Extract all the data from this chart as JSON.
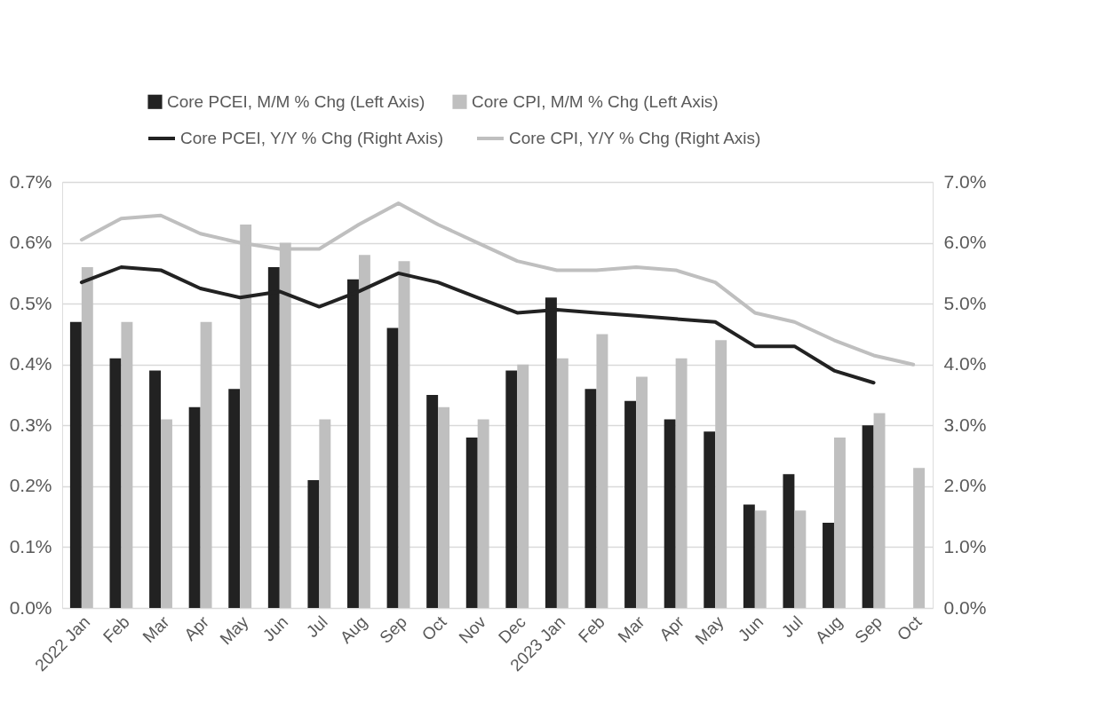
{
  "chart_data": {
    "type": "bar",
    "categories": [
      "2022 Jan",
      "Feb",
      "Mar",
      "Apr",
      "May",
      "Jun",
      "Jul",
      "Aug",
      "Sep",
      "Oct",
      "Nov",
      "Dec",
      "2023 Jan",
      "Feb",
      "Mar",
      "Apr",
      "May",
      "Jun",
      "Jul",
      "Aug",
      "Sep",
      "Oct"
    ],
    "series": [
      {
        "name": "Core PCEI, M/M % Chg (Left Axis)",
        "color": "#222222",
        "values": [
          0.47,
          0.41,
          0.39,
          0.33,
          0.36,
          0.56,
          0.21,
          0.54,
          0.46,
          0.35,
          0.28,
          0.39,
          0.51,
          0.36,
          0.34,
          0.31,
          0.29,
          0.17,
          0.22,
          0.14,
          0.3,
          null
        ]
      },
      {
        "name": "Core CPI, M/M % Chg (Left Axis)",
        "color": "#bfbfbf",
        "values": [
          0.56,
          0.47,
          0.31,
          0.47,
          0.63,
          0.6,
          0.31,
          0.58,
          0.57,
          0.33,
          0.31,
          0.4,
          0.41,
          0.45,
          0.38,
          0.41,
          0.44,
          0.16,
          0.16,
          0.28,
          0.32,
          0.23
        ]
      },
      {
        "name": "Core PCEI, Y/Y % Chg (Right Axis)",
        "type": "line",
        "axis": "y2",
        "color": "#222222",
        "values": [
          5.35,
          5.6,
          5.55,
          5.25,
          5.1,
          5.2,
          4.95,
          5.2,
          5.5,
          5.35,
          5.1,
          4.85,
          4.9,
          4.85,
          4.8,
          4.75,
          4.7,
          4.3,
          4.3,
          3.9,
          3.7,
          null
        ]
      },
      {
        "name": "Core CPI, Y/Y % Chg (Right Axis)",
        "type": "line",
        "axis": "y2",
        "color": "#bfbfbf",
        "values": [
          6.05,
          6.4,
          6.45,
          6.15,
          6.0,
          5.9,
          5.9,
          6.3,
          6.65,
          6.3,
          6.0,
          5.7,
          5.55,
          5.55,
          5.6,
          5.55,
          5.35,
          4.85,
          4.7,
          4.4,
          4.15,
          4.0
        ]
      }
    ],
    "ylim": [
      0,
      0.7
    ],
    "yticks": [
      {
        "value": 0,
        "label": "0.0%"
      },
      {
        "value": 0.1,
        "label": "0.1%"
      },
      {
        "value": 0.2,
        "label": "0.2%"
      },
      {
        "value": 0.3,
        "label": "0.3%"
      },
      {
        "value": 0.4,
        "label": "0.4%"
      },
      {
        "value": 0.5,
        "label": "0.5%"
      },
      {
        "value": 0.6,
        "label": "0.6%"
      },
      {
        "value": 0.7,
        "label": "0.7%"
      }
    ],
    "y2lim": [
      0,
      7
    ],
    "y2ticks": [
      {
        "value": 0,
        "label": "0.0%"
      },
      {
        "value": 1,
        "label": "1.0%"
      },
      {
        "value": 2,
        "label": "2.0%"
      },
      {
        "value": 3,
        "label": "3.0%"
      },
      {
        "value": 4,
        "label": "4.0%"
      },
      {
        "value": 5,
        "label": "5.0%"
      },
      {
        "value": 6,
        "label": "6.0%"
      },
      {
        "value": 7,
        "label": "7.0%"
      }
    ],
    "grid": "y",
    "legend": "top",
    "line_style": "solid",
    "marker": "none"
  }
}
